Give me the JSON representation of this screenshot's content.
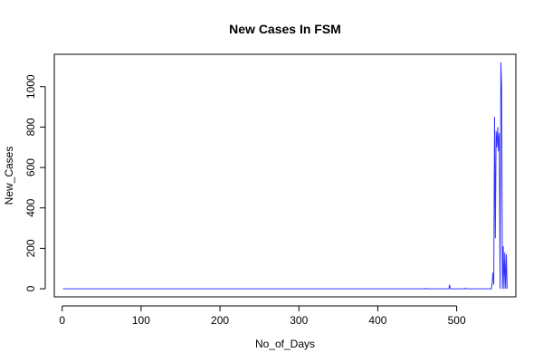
{
  "chart_data": {
    "type": "line",
    "title": "New Cases In FSM",
    "xlabel": "No_of_Days",
    "ylabel": "New_Cases",
    "xlim": [
      -10,
      575
    ],
    "ylim": [
      -40,
      1160
    ],
    "x_ticks": [
      0,
      100,
      200,
      300,
      400,
      500
    ],
    "y_ticks": [
      0,
      200,
      400,
      600,
      800,
      1000
    ],
    "grid": false,
    "legend": "none",
    "line_color": "#3333ff",
    "series": [
      {
        "x": [
          1,
          460,
          461,
          462,
          463,
          490,
          491,
          492,
          510,
          511,
          512,
          544,
          545,
          546,
          547,
          548,
          549,
          550,
          551,
          552,
          553,
          554,
          555,
          556,
          557,
          558,
          559,
          560,
          561,
          562,
          563,
          564
        ],
        "values": [
          0,
          0,
          2,
          0,
          0,
          0,
          20,
          0,
          0,
          3,
          0,
          0,
          30,
          80,
          20,
          850,
          250,
          780,
          700,
          800,
          680,
          770,
          0,
          1120,
          1000,
          0,
          210,
          0,
          180,
          0,
          170,
          0
        ]
      }
    ]
  }
}
